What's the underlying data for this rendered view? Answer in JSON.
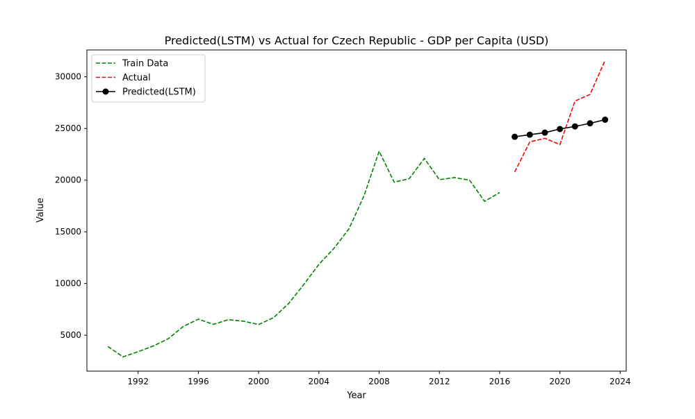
{
  "chart_data": {
    "type": "line",
    "title": "Predicted(LSTM) vs Actual for Czech Republic - GDP per Capita (USD)",
    "xlabel": "Year",
    "ylabel": "Value",
    "xlim": [
      1988.6,
      2024.4
    ],
    "ylim": [
      1520,
      32600
    ],
    "xticks": [
      1992,
      1996,
      2000,
      2004,
      2008,
      2012,
      2016,
      2020,
      2024
    ],
    "yticks": [
      5000,
      10000,
      15000,
      20000,
      25000,
      30000
    ],
    "grid": false,
    "legend_position": "top-left",
    "series": [
      {
        "name": "Train Data",
        "color": "#008000",
        "style": "dashed",
        "marker": "none",
        "x": [
          1990,
          1991,
          1992,
          1993,
          1994,
          1995,
          1996,
          1997,
          1998,
          1999,
          2000,
          2001,
          2002,
          2003,
          2004,
          2005,
          2006,
          2007,
          2008,
          2009,
          2010,
          2011,
          2012,
          2013,
          2014,
          2015,
          2016
        ],
        "y": [
          3900,
          2900,
          3400,
          3950,
          4650,
          5850,
          6550,
          6050,
          6500,
          6350,
          6030,
          6700,
          8080,
          9900,
          11850,
          13400,
          15300,
          18500,
          22800,
          19800,
          20150,
          22100,
          20050,
          20250,
          20000,
          17950,
          18800
        ]
      },
      {
        "name": "Actual",
        "color": "#ff0000",
        "style": "dashed",
        "marker": "none",
        "x": [
          2017,
          2018,
          2019,
          2020,
          2021,
          2022,
          2023
        ],
        "y": [
          20800,
          23700,
          24050,
          23450,
          27650,
          28300,
          31600
        ]
      },
      {
        "name": "Predicted(LSTM)",
        "color": "#000000",
        "style": "solid",
        "marker": "circle",
        "x": [
          2017,
          2018,
          2019,
          2020,
          2021,
          2022,
          2023
        ],
        "y": [
          24200,
          24400,
          24600,
          24950,
          25200,
          25500,
          25850
        ]
      }
    ]
  }
}
